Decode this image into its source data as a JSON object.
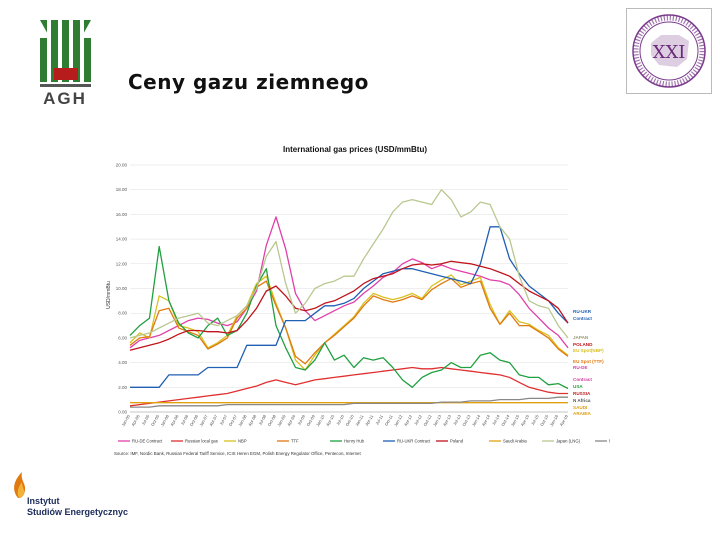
{
  "slide": {
    "title": "Ceny gazu ziemnego",
    "logo_left_text": "AGH",
    "logo_right_text": "XXI",
    "logo_bottom_line1": "Instytut",
    "logo_bottom_line2": "Studiów Energetycznych"
  },
  "colors": {
    "agh_green": "#2e7d32",
    "agh_red": "#b71c1c",
    "xxi_purple": "#7b3b8c"
  },
  "chart_data": {
    "type": "line",
    "title": "International gas prices (USD/mmBtu)",
    "ylabel": "USD/mmBtu",
    "ylim": [
      0,
      20
    ],
    "yticks": [
      "20.00",
      "18.00",
      "16.00",
      "14.00",
      "12.00",
      "10.00",
      "8.00",
      "6.00",
      "4.00",
      "2.00",
      "0.00"
    ],
    "x": [
      "Jan-05",
      "Apr-05",
      "Jul-05",
      "Oct-05",
      "Jan-06",
      "Apr-06",
      "Jul-06",
      "Oct-06",
      "Jan-07",
      "Apr-07",
      "Jul-07",
      "Oct-07",
      "Jan-08",
      "Apr-08",
      "Jul-08",
      "Oct-08",
      "Jan-09",
      "Apr-09",
      "Jul-09",
      "Oct-09",
      "Jan-10",
      "Apr-10",
      "Jul-10",
      "Oct-10",
      "Jan-11",
      "Apr-11",
      "Jul-11",
      "Oct-11",
      "Jan-12",
      "Apr-12",
      "Jul-12",
      "Oct-12",
      "Jan-13",
      "Apr-13",
      "Jul-13",
      "Oct-13",
      "Jan-14",
      "Apr-14",
      "Jul-14",
      "Oct-14",
      "Jan-15",
      "Apr-15",
      "Jul-15",
      "Oct-15",
      "Jan-16",
      "Apr-16"
    ],
    "grid": true,
    "source": "Source: IMF, Nordic Bank, Russian Federal Tariff Service, ICIS Heren EGM, Polish Energy Regulator Office, Pentecon, Internet",
    "end_labels": [
      {
        "text": "RU-UKR",
        "color": "#1f5fb4"
      },
      {
        "text": "Contract",
        "color": "#1f5fb4"
      },
      {
        "text": "JAPAN",
        "color": "#9a9a70"
      },
      {
        "text": "POLAND",
        "color": "#c0141c"
      },
      {
        "text": "EU Spot(NBP)",
        "color": "#d8c020"
      },
      {
        "text": "EU Spot (TTF)",
        "color": "#e07a10"
      },
      {
        "text": "RU-DE",
        "color": "#d040a0"
      },
      {
        "text": "Contract",
        "color": "#d040a0"
      },
      {
        "text": "USA",
        "color": "#20a040"
      },
      {
        "text": "RUSSIA",
        "color": "#c02020"
      },
      {
        "text": "N Africa",
        "color": "#555555"
      },
      {
        "text": "SAUDI",
        "color": "#e0a010"
      },
      {
        "text": "ARABIA",
        "color": "#e0a010"
      }
    ],
    "series": [
      {
        "name": "RU-DE Contract",
        "color": "#e040a8",
        "values": [
          5.2,
          5.8,
          6.0,
          6.2,
          6.6,
          7.0,
          7.4,
          7.6,
          7.5,
          7.2,
          7.0,
          7.3,
          8.4,
          9.8,
          13.5,
          15.8,
          13.2,
          9.6,
          8.2,
          7.4,
          7.8,
          8.2,
          8.6,
          8.9,
          9.6,
          10.2,
          10.9,
          11.3,
          12.0,
          12.4,
          12.1,
          11.6,
          11.9,
          11.6,
          11.4,
          11.2,
          11.0,
          10.7,
          10.6,
          10.3,
          9.5,
          8.4,
          7.6,
          6.8,
          6.2,
          5.2
        ]
      },
      {
        "name": "Russian local gas",
        "color": "#e03030",
        "values": [
          0.5,
          0.6,
          0.7,
          0.8,
          0.9,
          1.0,
          1.1,
          1.2,
          1.3,
          1.4,
          1.5,
          1.7,
          1.9,
          2.1,
          2.4,
          2.6,
          2.4,
          2.2,
          2.4,
          2.6,
          2.7,
          2.8,
          2.9,
          3.0,
          3.1,
          3.2,
          3.3,
          3.4,
          3.5,
          3.6,
          3.5,
          3.5,
          3.6,
          3.5,
          3.4,
          3.3,
          3.2,
          3.1,
          3.0,
          2.8,
          2.4,
          2.0,
          1.8,
          1.6,
          1.5,
          1.5
        ]
      },
      {
        "name": "NBP",
        "color": "#d8c020",
        "values": [
          5.6,
          6.4,
          6.0,
          9.4,
          9.0,
          7.0,
          6.8,
          6.5,
          5.2,
          5.6,
          6.2,
          7.8,
          8.6,
          10.4,
          11.0,
          8.8,
          6.8,
          4.2,
          3.4,
          4.6,
          5.6,
          6.3,
          7.0,
          7.7,
          8.8,
          9.6,
          9.3,
          9.1,
          9.3,
          9.6,
          9.2,
          10.2,
          10.7,
          11.1,
          10.3,
          10.6,
          10.9,
          8.7,
          7.1,
          8.2,
          7.3,
          7.1,
          6.6,
          6.2,
          5.2,
          4.6
        ]
      },
      {
        "name": "TTF",
        "color": "#e07a10",
        "values": [
          5.4,
          6.0,
          6.1,
          8.2,
          8.4,
          6.8,
          6.5,
          6.2,
          5.1,
          5.5,
          6.0,
          7.6,
          8.4,
          10.1,
          10.6,
          8.6,
          6.8,
          4.5,
          3.9,
          4.8,
          5.6,
          6.2,
          6.9,
          7.6,
          8.6,
          9.4,
          9.1,
          8.9,
          9.1,
          9.4,
          9.1,
          9.9,
          10.4,
          10.8,
          10.1,
          10.4,
          10.6,
          8.4,
          7.1,
          8.0,
          7.0,
          7.0,
          6.5,
          6.0,
          5.1,
          4.5
        ]
      },
      {
        "name": "Henry Hub",
        "color": "#20a040",
        "values": [
          6.2,
          7.0,
          7.6,
          13.4,
          9.0,
          7.2,
          6.4,
          6.0,
          7.0,
          7.6,
          6.2,
          6.6,
          8.0,
          10.2,
          11.6,
          7.0,
          5.2,
          3.6,
          3.4,
          4.2,
          5.6,
          4.2,
          4.6,
          3.6,
          4.4,
          4.2,
          4.4,
          3.6,
          2.6,
          2.0,
          2.8,
          3.2,
          3.4,
          4.0,
          3.6,
          3.6,
          4.6,
          4.8,
          4.2,
          4.0,
          3.0,
          2.8,
          2.8,
          2.2,
          2.3,
          1.9
        ]
      },
      {
        "name": "RU-UKR Contract",
        "color": "#1f5fb4",
        "values": [
          2.0,
          2.0,
          2.0,
          2.0,
          3.0,
          3.0,
          3.0,
          3.0,
          3.6,
          3.6,
          3.6,
          3.6,
          5.4,
          5.4,
          5.4,
          5.4,
          7.4,
          7.4,
          7.4,
          8.0,
          8.6,
          8.6,
          8.8,
          9.2,
          10.0,
          10.6,
          11.2,
          11.4,
          11.6,
          11.6,
          11.4,
          11.2,
          11.0,
          10.8,
          10.6,
          10.4,
          12.0,
          15.0,
          15.0,
          12.4,
          11.2,
          10.2,
          9.6,
          9.0,
          8.0,
          7.2
        ]
      },
      {
        "name": "Poland",
        "color": "#c0141c",
        "values": [
          5.0,
          5.2,
          5.4,
          5.6,
          5.9,
          6.3,
          6.6,
          6.6,
          6.5,
          6.5,
          6.4,
          6.6,
          7.4,
          8.4,
          9.8,
          10.2,
          9.4,
          8.4,
          8.2,
          8.4,
          8.8,
          9.0,
          9.4,
          9.8,
          10.4,
          10.8,
          11.0,
          11.2,
          11.6,
          11.9,
          12.0,
          11.9,
          12.0,
          12.2,
          12.1,
          12.0,
          11.8,
          11.6,
          11.3,
          11.0,
          10.4,
          9.8,
          9.4,
          9.0,
          8.4,
          7.2
        ]
      },
      {
        "name": "Saudi Arabia",
        "color": "#e0a010",
        "values": [
          0.75,
          0.75,
          0.75,
          0.75,
          0.75,
          0.75,
          0.75,
          0.75,
          0.75,
          0.75,
          0.75,
          0.75,
          0.75,
          0.75,
          0.75,
          0.75,
          0.75,
          0.75,
          0.75,
          0.75,
          0.75,
          0.75,
          0.75,
          0.75,
          0.75,
          0.75,
          0.75,
          0.75,
          0.75,
          0.75,
          0.75,
          0.75,
          0.75,
          0.75,
          0.75,
          0.75,
          0.75,
          0.75,
          0.75,
          0.75,
          0.75,
          0.75,
          0.75,
          0.75,
          0.75,
          0.75
        ]
      },
      {
        "name": "Japan (LNG)",
        "color": "#b8c890",
        "values": [
          6.0,
          6.2,
          6.4,
          6.8,
          7.2,
          7.6,
          7.8,
          8.0,
          7.2,
          7.0,
          7.4,
          7.8,
          8.6,
          10.0,
          12.6,
          13.8,
          10.4,
          8.0,
          8.8,
          10.0,
          10.4,
          10.6,
          11.0,
          11.0,
          12.4,
          13.6,
          14.8,
          16.2,
          17.0,
          17.2,
          17.0,
          16.8,
          18.0,
          17.2,
          15.8,
          16.2,
          17.0,
          16.8,
          15.0,
          14.0,
          11.0,
          9.0,
          8.6,
          8.4,
          7.0,
          6.0
        ]
      },
      {
        "name": "North Africa/Algeria (low)",
        "color": "#888888",
        "values": [
          0.4,
          0.4,
          0.4,
          0.5,
          0.5,
          0.5,
          0.5,
          0.5,
          0.5,
          0.5,
          0.6,
          0.6,
          0.6,
          0.6,
          0.6,
          0.6,
          0.6,
          0.6,
          0.6,
          0.6,
          0.6,
          0.6,
          0.6,
          0.7,
          0.7,
          0.7,
          0.7,
          0.7,
          0.7,
          0.7,
          0.7,
          0.7,
          0.8,
          0.8,
          0.8,
          0.9,
          0.9,
          0.9,
          1.0,
          1.0,
          1.0,
          1.1,
          1.1,
          1.1,
          1.2,
          1.2
        ]
      }
    ]
  }
}
